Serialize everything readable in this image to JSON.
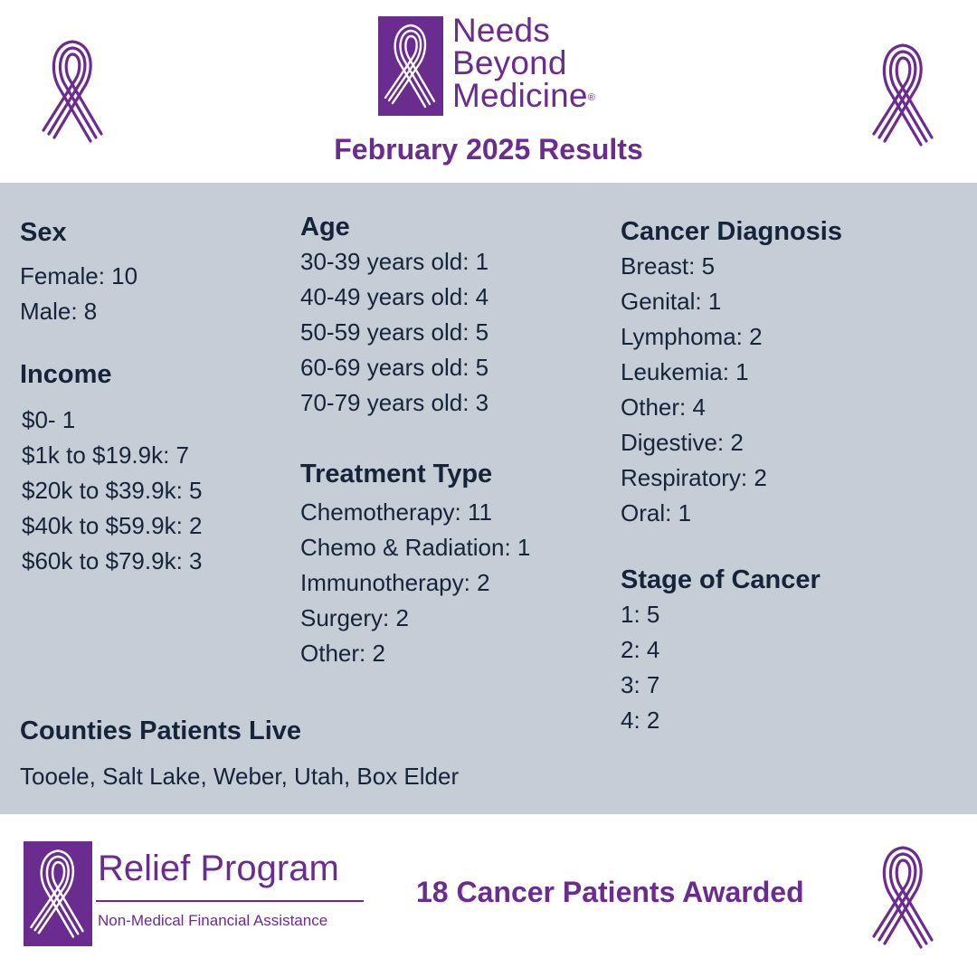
{
  "header": {
    "logo": {
      "line1": "Needs",
      "line2": "Beyond",
      "line3": "Medicine",
      "registered_mark": "®"
    },
    "title": "February 2025 Results"
  },
  "sections": {
    "sex": {
      "title": "Sex",
      "items": [
        "Female: 10",
        "Male: 8"
      ]
    },
    "income": {
      "title": "Income",
      "items": [
        "$0- 1",
        "$1k to $19.9k: 7",
        "$20k to $39.9k: 5",
        "$40k to $59.9k: 2",
        "$60k to $79.9k: 3"
      ]
    },
    "age": {
      "title": "Age",
      "items": [
        "30-39 years old: 1",
        "40-49 years old: 4",
        "50-59 years old: 5",
        "60-69 years old: 5",
        "70-79 years old: 3"
      ]
    },
    "treatment": {
      "title": "Treatment Type",
      "items": [
        "Chemotherapy: 11",
        "Chemo & Radiation: 1",
        "Immunotherapy: 2",
        "Surgery: 2",
        "Other: 2"
      ]
    },
    "diagnosis": {
      "title": "Cancer Diagnosis",
      "items": [
        "Breast: 5",
        "Genital: 1",
        "Lymphoma: 2",
        "Leukemia: 1",
        "Other: 4",
        "Digestive: 2",
        "Respiratory: 2",
        "Oral: 1"
      ]
    },
    "stage": {
      "title": "Stage of Cancer",
      "items": [
        "1: 5",
        "2: 4",
        "3: 7",
        "4: 2"
      ]
    },
    "counties": {
      "title": "Counties Patients Live",
      "items": [
        "Tooele, Salt Lake, Weber, Utah, Box Elder"
      ]
    }
  },
  "footer": {
    "program_title": "Relief Program",
    "program_subtitle": "Non-Medical Financial Assistance",
    "awarded": "18 Cancer Patients Awarded"
  },
  "colors": {
    "brand_purple": "#6a2c8e",
    "band_gray": "#c5cdd7",
    "text_dark": "#16243a"
  },
  "icons": [
    "ribbon-icon"
  ]
}
